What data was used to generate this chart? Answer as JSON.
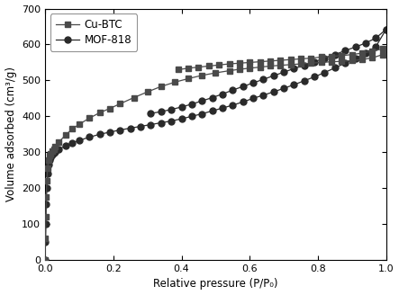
{
  "xlabel": "Relative pressure (P/P₀)",
  "ylabel": "Volume adsorbed (cm³/g)",
  "xlim": [
    0,
    1.0
  ],
  "ylim": [
    0,
    700
  ],
  "yticks": [
    0,
    100,
    200,
    300,
    400,
    500,
    600,
    700
  ],
  "xticks": [
    0.0,
    0.2,
    0.4,
    0.6,
    0.8,
    1.0
  ],
  "color_cubtc": "#4a4a4a",
  "color_mof818": "#2a2a2a",
  "marker_cubtc": "s",
  "marker_mof818": "o",
  "figsize": [
    4.43,
    3.28
  ],
  "dpi": 100,
  "cu_btc_ads_x": [
    0.0,
    0.001,
    0.002,
    0.003,
    0.005,
    0.007,
    0.01,
    0.013,
    0.016,
    0.02,
    0.025,
    0.03,
    0.04,
    0.06,
    0.08,
    0.1,
    0.13,
    0.16,
    0.19,
    0.22,
    0.26,
    0.3,
    0.34,
    0.38,
    0.42,
    0.46,
    0.5,
    0.54,
    0.57,
    0.6,
    0.63,
    0.66,
    0.69,
    0.72,
    0.75,
    0.78,
    0.81,
    0.84,
    0.87,
    0.9,
    0.93,
    0.96,
    0.99
  ],
  "cu_btc_ads_y": [
    0,
    60,
    120,
    175,
    220,
    255,
    278,
    290,
    296,
    302,
    308,
    315,
    328,
    348,
    365,
    378,
    395,
    410,
    422,
    435,
    452,
    468,
    483,
    495,
    505,
    514,
    521,
    527,
    531,
    534,
    537,
    540,
    542,
    544,
    546,
    548,
    550,
    552,
    553,
    555,
    558,
    563,
    572
  ],
  "cu_btc_des_x": [
    0.99,
    0.96,
    0.93,
    0.9,
    0.87,
    0.84,
    0.81,
    0.78,
    0.75,
    0.72,
    0.69,
    0.66,
    0.63,
    0.6,
    0.57,
    0.54,
    0.51,
    0.48,
    0.45,
    0.42,
    0.39
  ],
  "cu_btc_des_y": [
    588,
    582,
    576,
    572,
    569,
    567,
    565,
    562,
    560,
    558,
    556,
    554,
    552,
    550,
    548,
    546,
    543,
    540,
    537,
    534,
    530
  ],
  "mof818_ads_x": [
    0.0,
    0.001,
    0.002,
    0.003,
    0.005,
    0.007,
    0.01,
    0.013,
    0.016,
    0.02,
    0.025,
    0.03,
    0.04,
    0.06,
    0.08,
    0.1,
    0.13,
    0.16,
    0.19,
    0.22,
    0.25,
    0.28,
    0.31,
    0.34,
    0.37,
    0.4,
    0.43,
    0.46,
    0.49,
    0.52,
    0.55,
    0.58,
    0.61,
    0.64,
    0.67,
    0.7,
    0.73,
    0.76,
    0.79,
    0.82,
    0.85,
    0.88,
    0.91,
    0.94,
    0.97,
    1.0
  ],
  "mof818_ads_y": [
    0,
    50,
    100,
    155,
    200,
    240,
    265,
    278,
    286,
    292,
    297,
    301,
    308,
    318,
    326,
    333,
    342,
    350,
    356,
    362,
    367,
    372,
    377,
    382,
    387,
    393,
    400,
    407,
    415,
    423,
    431,
    440,
    450,
    459,
    468,
    478,
    488,
    499,
    510,
    522,
    535,
    548,
    561,
    576,
    594,
    642
  ],
  "mof818_des_x": [
    1.0,
    0.97,
    0.94,
    0.91,
    0.88,
    0.85,
    0.82,
    0.79,
    0.76,
    0.73,
    0.7,
    0.67,
    0.64,
    0.61,
    0.58,
    0.55,
    0.52,
    0.49,
    0.46,
    0.43,
    0.4,
    0.37,
    0.34,
    0.31
  ],
  "mof818_des_y": [
    642,
    618,
    604,
    593,
    583,
    572,
    562,
    552,
    542,
    533,
    523,
    513,
    503,
    493,
    483,
    473,
    462,
    452,
    443,
    434,
    426,
    419,
    413,
    408
  ],
  "background_color": "#ffffff",
  "legend_loc": "upper left"
}
